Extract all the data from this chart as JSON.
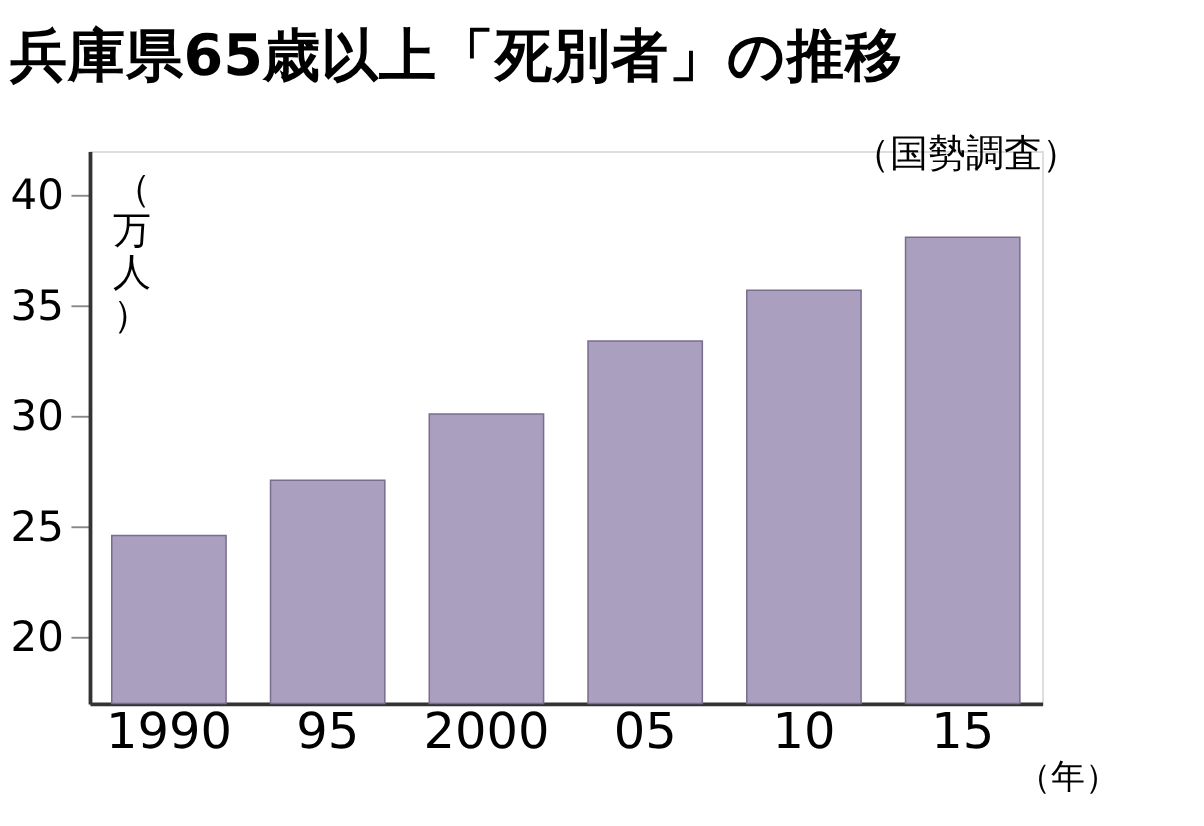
{
  "chart_data": {
    "type": "bar",
    "title": "兵庫県65歳以上「死別者」の推移",
    "annotations": [
      "（国勢調査）"
    ],
    "ylabel": "（万人）",
    "xlabel": "（年）",
    "categories": [
      "1990",
      "95",
      "2000",
      "05",
      "10",
      "15"
    ],
    "series": [
      {
        "color": "#ab9fbf",
        "values": [
          24.6,
          27.1,
          30.1,
          33.4,
          35.7,
          38.1
        ]
      }
    ],
    "ylim": [
      17,
      42
    ],
    "yticks": [
      20,
      25,
      30,
      35,
      40
    ],
    "grid": false
  }
}
